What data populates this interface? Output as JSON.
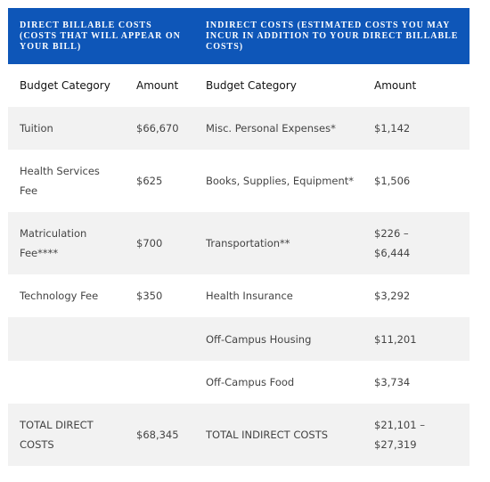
{
  "header": {
    "direct": "DIRECT BILLABLE COSTS (COSTS THAT WILL APPEAR ON YOUR BILL)",
    "indirect": "INDIRECT COSTS (ESTIMATED COSTS YOU MAY INCUR IN ADDITION TO YOUR DIRECT BILLABLE COSTS)"
  },
  "columns": [
    "Budget Category",
    "Amount",
    "Budget Category",
    "Amount"
  ],
  "rows": [
    {
      "category": "Tuition",
      "amount": "$66,670",
      "indirect_category": "Misc. Personal Expenses*",
      "indirect_amount": "$1,142"
    },
    {
      "category": "Health Services Fee",
      "amount": "$625",
      "indirect_category": "Books, Supplies, Equipment*",
      "indirect_amount": "$1,506"
    },
    {
      "category": "Matriculation Fee****",
      "amount": "$700",
      "indirect_category": "Transportation**",
      "indirect_amount": "$226 – $6,444"
    },
    {
      "category": "Technology Fee",
      "amount": "$350",
      "indirect_category": "Health Insurance",
      "indirect_amount": "$3,292"
    },
    {
      "indirect_category": "Off-Campus Housing",
      "indirect_amount": "$11,201"
    },
    {
      "indirect_category": "Off-Campus Food",
      "indirect_amount": "$3,734"
    },
    {
      "category": "TOTAL DIRECT COSTS",
      "amount": "$68,345",
      "indirect_category": "TOTAL INDIRECT COSTS",
      "indirect_amount": "$21,101 – $27,319"
    }
  ]
}
